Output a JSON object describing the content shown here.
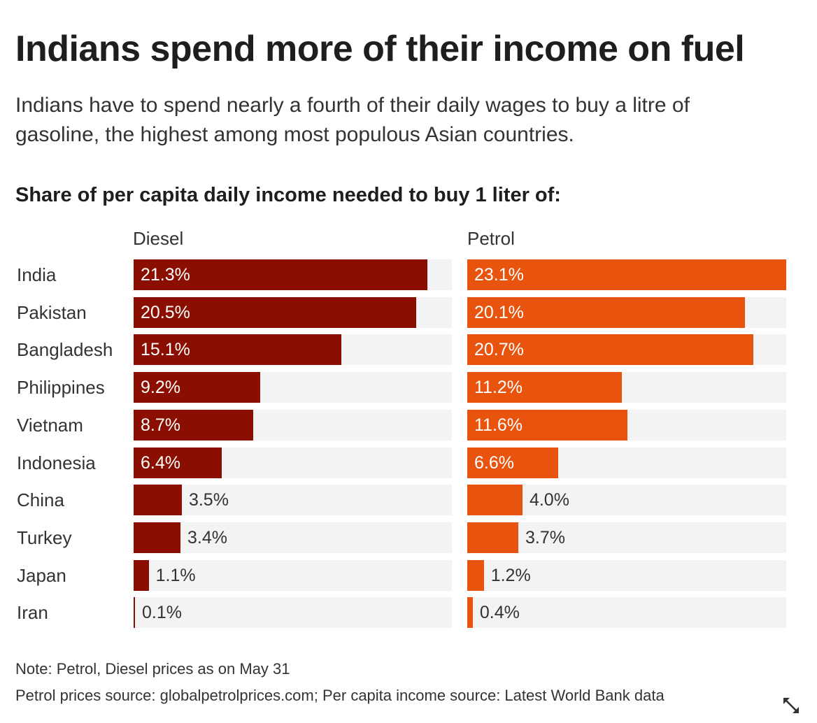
{
  "title": "Indians spend more of their income on fuel",
  "subtitle": "Indians have to spend nearly a fourth of their daily wages to buy a litre of gasoline, the highest among most populous Asian countries.",
  "chart_heading": "Share of per capita daily income needed to buy 1 liter of:",
  "notes": {
    "note": "Note: Petrol, Diesel prices as on May 31",
    "source": "Petrol prices source: globalpetrolprices.com; Per capita income source: Latest World Bank data"
  },
  "icons": {
    "expand": "expand-arrows-icon"
  },
  "chart_data": {
    "type": "bar",
    "orientation": "horizontal",
    "categories": [
      "India",
      "Pakistan",
      "Bangladesh",
      "Philippines",
      "Vietnam",
      "Indonesia",
      "China",
      "Turkey",
      "Japan",
      "Iran"
    ],
    "xlim": [
      0,
      23.1
    ],
    "unit": "%",
    "series": [
      {
        "name": "Diesel",
        "color": "#8b0f00",
        "values": [
          21.3,
          20.5,
          15.1,
          9.2,
          8.7,
          6.4,
          3.5,
          3.4,
          1.1,
          0.1
        ],
        "labels": [
          "21.3%",
          "20.5%",
          "15.1%",
          "9.2%",
          "8.7%",
          "6.4%",
          "3.5%",
          "3.4%",
          "1.1%",
          "0.1%"
        ]
      },
      {
        "name": "Petrol",
        "color": "#e8530e",
        "values": [
          23.1,
          20.1,
          20.7,
          11.2,
          11.6,
          6.6,
          4.0,
          3.7,
          1.2,
          0.4
        ],
        "labels": [
          "23.1%",
          "20.1%",
          "20.7%",
          "11.2%",
          "11.6%",
          "6.6%",
          "4.0%",
          "3.7%",
          "1.2%",
          "0.4%"
        ]
      }
    ],
    "track_color": "#f3f3f3"
  }
}
